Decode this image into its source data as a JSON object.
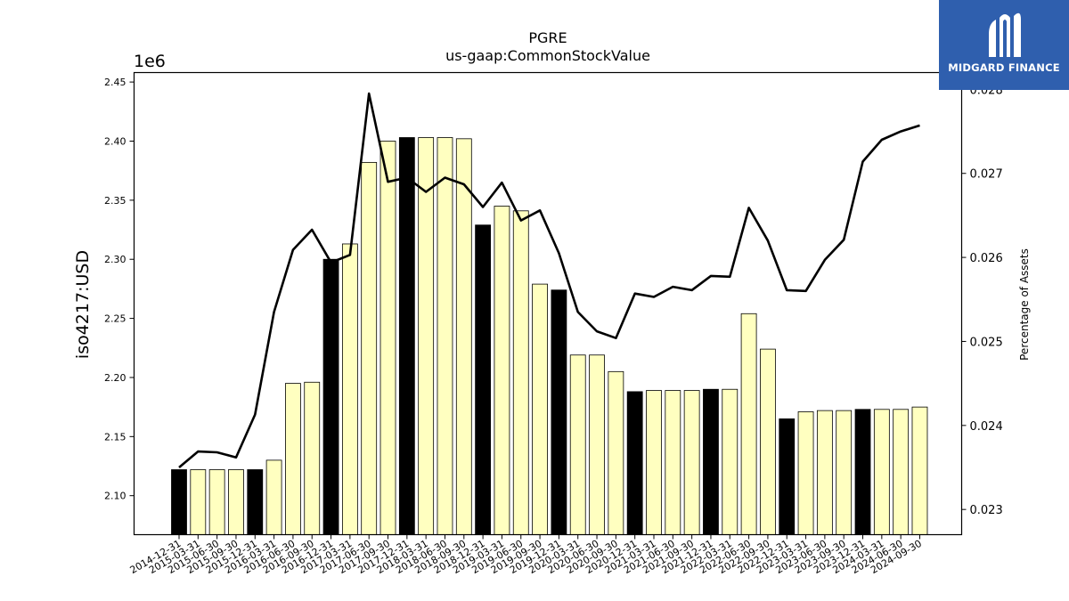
{
  "chart_data": {
    "type": "bar+line",
    "title": "PGRE",
    "subtitle": "us-gaap:CommonStockValue",
    "ylabel": "iso4217:USD",
    "y_offset_label": "1e6",
    "y2label": "Percentage of Assets",
    "ylim": [
      2.067,
      2.458
    ],
    "y2lim": [
      0.0227,
      0.0282
    ],
    "yticks": [
      "2.10",
      "2.15",
      "2.20",
      "2.25",
      "2.30",
      "2.35",
      "2.40",
      "2.45"
    ],
    "y2ticks": [
      "0.023",
      "0.024",
      "0.025",
      "0.026",
      "0.027",
      "0.028"
    ],
    "grid": false,
    "categories": [
      "2014-12-31",
      "2015-03-31",
      "2015-06-30",
      "2015-09-30",
      "2015-12-31",
      "2016-03-31",
      "2016-06-30",
      "2016-09-30",
      "2016-12-31",
      "2017-03-31",
      "2017-06-30",
      "2017-09-30",
      "2017-12-31",
      "2018-03-31",
      "2018-06-30",
      "2018-09-30",
      "2018-12-31",
      "2019-03-31",
      "2019-06-30",
      "2019-09-30",
      "2019-12-31",
      "2020-03-31",
      "2020-06-30",
      "2020-09-30",
      "2020-12-31",
      "2021-03-31",
      "2021-06-30",
      "2021-09-30",
      "2021-12-31",
      "2022-03-31",
      "2022-06-30",
      "2022-09-30",
      "2022-12-31",
      "2023-03-31",
      "2023-06-30",
      "2023-09-30",
      "2023-12-31",
      "2024-03-31",
      "2024-06-30",
      "2024-09-30"
    ],
    "series": [
      {
        "type": "bar",
        "values": [
          2.122,
          2.122,
          2.122,
          2.122,
          2.122,
          2.13,
          2.195,
          2.196,
          2.3,
          2.313,
          2.382,
          2.4,
          2.403,
          2.403,
          2.403,
          2.402,
          2.329,
          2.345,
          2.341,
          2.279,
          2.274,
          2.219,
          2.219,
          2.205,
          2.188,
          2.189,
          2.189,
          2.189,
          2.19,
          2.19,
          2.254,
          2.224,
          2.165,
          2.171,
          2.172,
          2.172,
          2.173,
          2.173,
          2.173,
          2.175
        ],
        "highlight_indices": [
          0,
          4,
          8,
          12,
          16,
          20,
          24,
          28,
          32,
          36
        ],
        "color": "#ffffc0",
        "highlight_color": "#000000"
      },
      {
        "type": "line",
        "axis": "y2",
        "color": "#000000",
        "values": [
          0.0235,
          0.02369,
          0.02368,
          0.02362,
          0.02413,
          0.02535,
          0.02609,
          0.02633,
          0.02594,
          0.02603,
          0.02795,
          0.0269,
          0.02695,
          0.02678,
          0.02695,
          0.02687,
          0.0266,
          0.02689,
          0.02644,
          0.02656,
          0.02605,
          0.02535,
          0.02512,
          0.02504,
          0.02557,
          0.02553,
          0.02565,
          0.02561,
          0.02578,
          0.02577,
          0.02659,
          0.0262,
          0.02561,
          0.0256,
          0.02597,
          0.02621,
          0.02714,
          0.0274,
          0.0275,
          0.02757
        ]
      }
    ]
  },
  "logo": {
    "text": "MIDGARD FINANCE",
    "icon": "midgard-logo-icon"
  }
}
